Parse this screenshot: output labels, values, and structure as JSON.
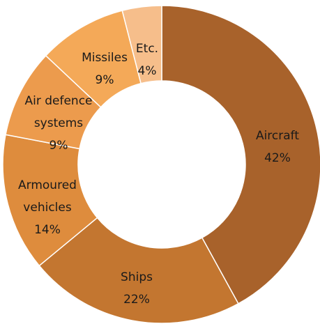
{
  "chart_data": {
    "type": "pie",
    "variant": "donut",
    "legend": "none",
    "slices": [
      {
        "label": "Aircraft",
        "label_lines": [
          "Aircraft"
        ],
        "value": 42,
        "value_label": "42%",
        "color": "#a8622b"
      },
      {
        "label": "Ships",
        "label_lines": [
          "Ships"
        ],
        "value": 22,
        "value_label": "22%",
        "color": "#c37630"
      },
      {
        "label": "Armoured vehicles",
        "label_lines": [
          "Armoured",
          "vehicles"
        ],
        "value": 14,
        "value_label": "14%",
        "color": "#de8c3d"
      },
      {
        "label": "Air defence systems",
        "label_lines": [
          "Air defence",
          "systems"
        ],
        "value": 9,
        "value_label": "9%",
        "color": "#ec9b4d"
      },
      {
        "label": "Missiles",
        "label_lines": [
          "Missiles"
        ],
        "value": 9,
        "value_label": "9%",
        "color": "#f4a958"
      },
      {
        "label": "Etc.",
        "label_lines": [
          "Etc."
        ],
        "value": 4,
        "value_label": "4%",
        "color": "#f6be8b"
      }
    ]
  }
}
